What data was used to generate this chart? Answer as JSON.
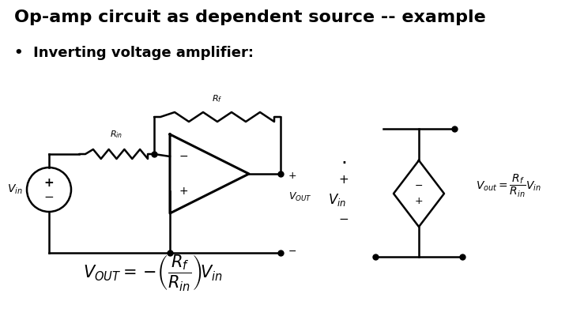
{
  "title": "Op-amp circuit as dependent source -- example",
  "subtitle": "Inverting voltage amplifier:",
  "bg_color": "#ffffff",
  "text_color": "#000000",
  "title_fontsize": 16,
  "subtitle_fontsize": 13
}
